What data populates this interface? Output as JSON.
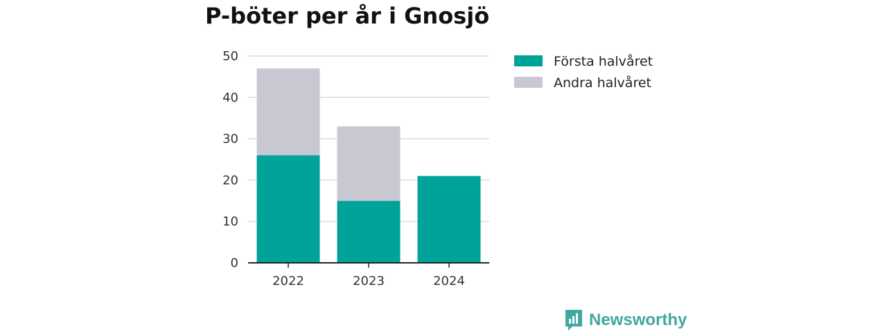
{
  "title": "P-böter per år i Gnosjö",
  "brand": {
    "name": "Newsworthy",
    "icon": "newsworthy-logo-icon",
    "color": "#41a7a0"
  },
  "chart_data": {
    "type": "bar",
    "stacked": true,
    "categories": [
      "2022",
      "2023",
      "2024"
    ],
    "series": [
      {
        "name": "Första halvåret",
        "values": [
          26,
          15,
          21
        ],
        "color": "#00a39a"
      },
      {
        "name": "Andra halvåret",
        "values": [
          21,
          18,
          0
        ],
        "color": "#c8c8d2"
      }
    ],
    "ylim": [
      0,
      50
    ],
    "yticks": [
      0,
      10,
      20,
      30,
      40,
      50
    ],
    "grid": true,
    "legend": "right",
    "xlabel": "",
    "ylabel": ""
  }
}
